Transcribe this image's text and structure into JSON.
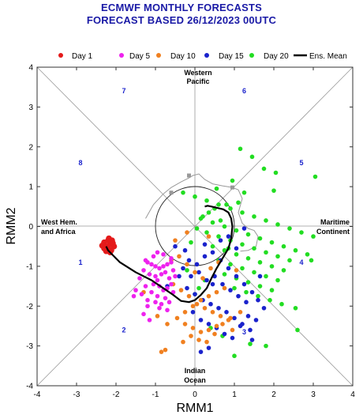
{
  "title": "ECMWF MONTHLY FORECASTS",
  "subtitle": "FORECAST  BASED 26/12/2023 00UTC",
  "colors": {
    "day1": "#e41a1a",
    "day5": "#ee22ee",
    "day10": "#f08020",
    "day15": "#1a22cc",
    "day20": "#22dd22",
    "ens_mean": "#000000",
    "grey_track": "#999999",
    "phase_numbers": "#1a22cc",
    "title": "#1a1aa6"
  },
  "chart_data": {
    "type": "scatter",
    "xlabel": "RMM1",
    "ylabel": "RMM2",
    "xlim": [
      -4,
      4
    ],
    "ylim": [
      -4,
      4
    ],
    "xticks": [
      "-4",
      "-3",
      "-2",
      "-1",
      "0",
      "1",
      "2",
      "3",
      "4"
    ],
    "yticks": [
      "-4",
      "-3",
      "-2",
      "-1",
      "0",
      "1",
      "2",
      "3",
      "4"
    ],
    "legend_position": "top",
    "legend": [
      "Day 1",
      "Day 5",
      "Day 10",
      "Day 15",
      "Day 20",
      "Ens. Mean"
    ],
    "region_labels": {
      "top": [
        "Western",
        "Pacific"
      ],
      "bottom": [
        "Indian",
        "Ocean"
      ],
      "left": [
        "West Hem.",
        "and Africa"
      ],
      "right": [
        "Maritime",
        "Continent"
      ]
    },
    "phases": [
      {
        "label": "1",
        "x": -2.9,
        "y": -0.9
      },
      {
        "label": "2",
        "x": -1.8,
        "y": -2.6
      },
      {
        "label": "3",
        "x": 1.25,
        "y": -2.65
      },
      {
        "label": "4",
        "x": 2.7,
        "y": -0.9
      },
      {
        "label": "5",
        "x": 2.7,
        "y": 1.6
      },
      {
        "label": "6",
        "x": 1.25,
        "y": 3.4
      },
      {
        "label": "7",
        "x": -1.8,
        "y": 3.4
      },
      {
        "label": "8",
        "x": -2.9,
        "y": 1.6
      }
    ],
    "unit_circle_radius": 1,
    "ensemble_mean": {
      "x": [
        -2.25,
        -2.2,
        -1.9,
        -1.5,
        -1.1,
        -0.8,
        -0.55,
        -0.35,
        -0.15,
        0.0,
        0.15,
        0.3,
        0.42,
        0.55,
        0.7,
        0.85,
        0.92,
        0.95,
        0.92,
        0.85,
        0.72,
        0.55,
        0.42,
        0.32,
        0.25
      ],
      "y": [
        -0.5,
        -0.6,
        -0.9,
        -1.15,
        -1.35,
        -1.55,
        -1.72,
        -1.87,
        -1.9,
        -1.85,
        -1.72,
        -1.55,
        -1.3,
        -1.05,
        -0.8,
        -0.55,
        -0.3,
        0.0,
        0.2,
        0.35,
        0.43,
        0.47,
        0.5,
        0.52,
        0.5
      ]
    },
    "observed_track": {
      "x": [
        -1.25,
        -1.05,
        -0.8,
        -0.6,
        -0.35,
        -0.15,
        -0.05,
        0.1,
        0.25,
        0.45,
        0.7,
        0.95,
        1.1,
        1.2,
        1.1,
        1.2,
        1.35,
        1.5,
        1.6,
        1.55,
        1.35,
        1.15
      ],
      "y": [
        0.2,
        0.55,
        0.82,
        0.98,
        1.12,
        1.22,
        1.28,
        1.32,
        1.18,
        1.07,
        1.02,
        0.98,
        0.92,
        0.7,
        0.35,
        0.08,
        -0.05,
        -0.1,
        -0.25,
        -0.5,
        -0.6,
        -0.62
      ]
    },
    "observed_markers": {
      "x": [
        -0.6,
        -0.15,
        0.95
      ],
      "y": [
        0.85,
        1.28,
        0.98
      ]
    },
    "series": [
      {
        "name": "Day 1",
        "x": [
          -2.3,
          -2.25,
          -2.2,
          -2.15,
          -2.1,
          -2.05,
          -2.2,
          -2.3,
          -2.12,
          -2.18,
          -2.25,
          -2.08,
          -2.35,
          -2.15
        ],
        "y": [
          -0.4,
          -0.5,
          -0.55,
          -0.45,
          -0.35,
          -0.5,
          -0.35,
          -0.55,
          -0.6,
          -0.3,
          -0.62,
          -0.42,
          -0.48,
          -0.65
        ]
      },
      {
        "name": "Day 5",
        "x": [
          -1.2,
          -1.1,
          -1.0,
          -0.9,
          -0.8,
          -0.7,
          -0.6,
          -0.55,
          -1.3,
          -1.15,
          -1.0,
          -0.85,
          -0.75,
          -0.65,
          -0.95,
          -1.05,
          -0.9,
          -0.6,
          -0.5,
          -1.4,
          -1.25,
          -0.8,
          -0.7,
          -1.1,
          -0.95,
          -0.75,
          -0.55,
          -1.2,
          -1.0,
          -0.85,
          -0.65,
          -1.35,
          -1.5,
          -1.2,
          -0.9,
          -0.7,
          -1.05,
          -0.8,
          -0.6,
          -1.25,
          -1.55,
          -1.3,
          -1.15,
          -0.95
        ],
        "y": [
          -0.9,
          -0.95,
          -1.0,
          -1.05,
          -1.0,
          -0.95,
          -0.9,
          -1.1,
          -1.1,
          -1.2,
          -1.25,
          -1.2,
          -1.15,
          -1.3,
          -1.35,
          -1.45,
          -1.5,
          -1.45,
          -1.25,
          -1.3,
          -1.5,
          -1.6,
          -1.55,
          -1.65,
          -1.75,
          -1.8,
          -1.65,
          -1.85,
          -1.9,
          -1.95,
          -1.9,
          -1.7,
          -1.6,
          -2.0,
          -2.05,
          -2.1,
          -0.75,
          -0.7,
          -0.8,
          -0.85,
          -1.75,
          -2.2,
          -2.35,
          -0.65
        ]
      },
      {
        "name": "Day 10",
        "x": [
          -1.3,
          -0.95,
          -0.7,
          -0.45,
          -0.25,
          -0.05,
          0.15,
          0.35,
          0.55,
          0.75,
          -0.55,
          -0.35,
          -0.15,
          0.05,
          0.25,
          0.45,
          0.65,
          0.85,
          -0.6,
          -0.4,
          -0.2,
          0.0,
          0.2,
          0.4,
          0.6,
          1.05,
          -0.25,
          -0.05,
          0.15,
          0.35,
          0.55,
          -0.1,
          0.1,
          0.3,
          0.5,
          0.7,
          0.9,
          -0.3,
          -0.75,
          -0.5,
          -0.2,
          0.35,
          -0.85,
          0.95,
          1.15
        ],
        "y": [
          -1.65,
          -2.25,
          -2.45,
          -2.3,
          -2.15,
          -2.0,
          -1.85,
          -1.75,
          -1.65,
          -1.55,
          -1.45,
          -1.6,
          -1.75,
          -1.95,
          -2.05,
          -2.15,
          -2.25,
          -2.35,
          -0.85,
          -0.75,
          -0.95,
          -1.15,
          -1.3,
          -1.05,
          -0.9,
          -1.1,
          -2.45,
          -2.55,
          -2.65,
          -2.6,
          -2.5,
          -2.75,
          -2.85,
          -2.9,
          -2.7,
          -2.45,
          -2.3,
          -2.9,
          -3.1,
          -0.35,
          -0.15,
          -0.25,
          -3.15,
          -2.6,
          -2.15
        ]
      },
      {
        "name": "Day 15",
        "x": [
          -0.3,
          -0.1,
          0.1,
          0.3,
          0.5,
          0.7,
          0.9,
          1.1,
          1.3,
          -0.2,
          0.0,
          0.2,
          0.4,
          0.6,
          0.8,
          1.0,
          1.2,
          1.4,
          -0.4,
          -0.15,
          0.05,
          0.25,
          0.45,
          0.65,
          0.85,
          1.05,
          1.25,
          1.45,
          1.6,
          -0.05,
          0.15,
          0.35,
          0.55,
          0.75,
          0.95,
          1.15,
          1.35,
          1.55,
          1.75,
          0.25,
          0.65,
          1.05,
          0.45,
          0.85,
          1.25,
          -0.5,
          -0.25,
          -0.7,
          1.45,
          0.35,
          0.15,
          1.65
        ],
        "y": [
          -1.05,
          -1.25,
          -1.15,
          -1.35,
          -1.25,
          -1.45,
          -1.6,
          -1.75,
          -1.9,
          -1.55,
          -1.7,
          -1.85,
          -1.95,
          -2.05,
          -2.15,
          -2.3,
          -2.45,
          -2.6,
          -1.25,
          -0.85,
          -0.95,
          -0.75,
          -0.65,
          -0.85,
          -1.05,
          -1.25,
          -1.45,
          -1.65,
          -1.85,
          -2.15,
          -2.35,
          -2.45,
          -2.55,
          -2.7,
          -2.8,
          -2.5,
          -2.25,
          -2.35,
          -2.05,
          -0.45,
          -0.35,
          -0.55,
          -1.45,
          -0.25,
          -0.05,
          -0.5,
          -0.6,
          -1.5,
          -2.85,
          -3.05,
          -3.15,
          -1.25
        ]
      },
      {
        "name": "Day 20",
        "x": [
          -0.3,
          0.0,
          0.3,
          0.6,
          0.9,
          1.2,
          1.5,
          1.8,
          2.1,
          2.4,
          2.7,
          3.0,
          0.15,
          0.45,
          0.75,
          1.05,
          1.35,
          1.65,
          1.95,
          2.25,
          2.55,
          2.85,
          0.3,
          0.6,
          0.9,
          1.2,
          1.5,
          1.8,
          2.1,
          2.4,
          0.45,
          0.75,
          1.05,
          1.35,
          1.65,
          1.95,
          2.25,
          0.6,
          0.9,
          1.2,
          1.5,
          1.8,
          2.1,
          0.75,
          1.05,
          1.35,
          1.65,
          1.95,
          1.0,
          1.3,
          1.6,
          1.9,
          2.2,
          2.55,
          2.95,
          3.05,
          1.15,
          1.45,
          1.75,
          2.05,
          0.2,
          0.5,
          0.8,
          0.05,
          0.35,
          0.65,
          -0.1,
          0.1,
          0.4,
          0.7,
          1.0,
          1.4,
          1.8,
          2.6,
          0.55,
          0.95,
          1.25,
          0.0,
          -0.2,
          0.25,
          2.0,
          1.1,
          0.85
        ],
        "y": [
          0.85,
          0.75,
          0.65,
          0.55,
          0.45,
          0.35,
          0.25,
          0.15,
          0.05,
          -0.05,
          -0.15,
          -0.25,
          0.2,
          0.1,
          0.0,
          -0.1,
          -0.2,
          -0.3,
          -0.4,
          -0.5,
          -0.6,
          -0.7,
          -0.15,
          -0.25,
          -0.35,
          -0.45,
          -0.55,
          -0.65,
          -0.75,
          -0.85,
          -0.5,
          -0.6,
          -0.7,
          -0.8,
          -0.9,
          -1.0,
          -1.1,
          -0.85,
          -0.95,
          -1.05,
          -1.15,
          -1.25,
          -1.35,
          -1.2,
          -1.3,
          -1.4,
          -1.5,
          -1.6,
          -1.55,
          -1.65,
          -1.75,
          -1.85,
          -1.95,
          -2.05,
          -0.85,
          1.25,
          1.95,
          1.75,
          1.45,
          1.35,
          0.25,
          0.45,
          0.55,
          -0.05,
          0.35,
          0.15,
          -0.4,
          -1.55,
          -2.55,
          -2.75,
          -3.25,
          -2.95,
          -3.0,
          -2.6,
          0.95,
          1.15,
          0.85,
          -1.7,
          -1.1,
          -1.35,
          0.9,
          0.6,
          -0.55
        ]
      }
    ]
  }
}
